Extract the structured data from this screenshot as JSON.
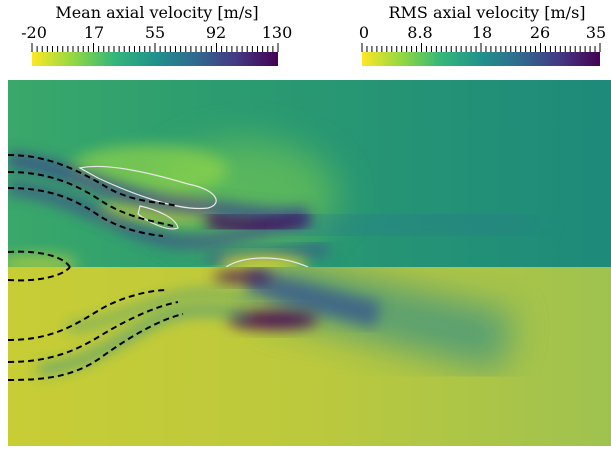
{
  "colorbars": [
    {
      "title": "Mean axial velocity [m/s]",
      "ticks": [
        "-20",
        "17",
        "55",
        "92",
        "130"
      ],
      "min": -20,
      "max": 130,
      "colormap": "viridis-reversed"
    },
    {
      "title": "RMS axial velocity [m/s]",
      "ticks": [
        "0",
        "8.8",
        "18",
        "26",
        "35"
      ],
      "min": 0,
      "max": 35,
      "colormap": "viridis-reversed"
    }
  ],
  "colors": {
    "viridis_reversed": [
      "#fde725",
      "#90d743",
      "#35b779",
      "#21918c",
      "#31688e",
      "#443983",
      "#440154"
    ],
    "upper_background": "#1f8f7a",
    "lower_background": "#c9cf3a",
    "contour_dashed": "#000000",
    "contour_zero": "#e8e8e8"
  }
}
